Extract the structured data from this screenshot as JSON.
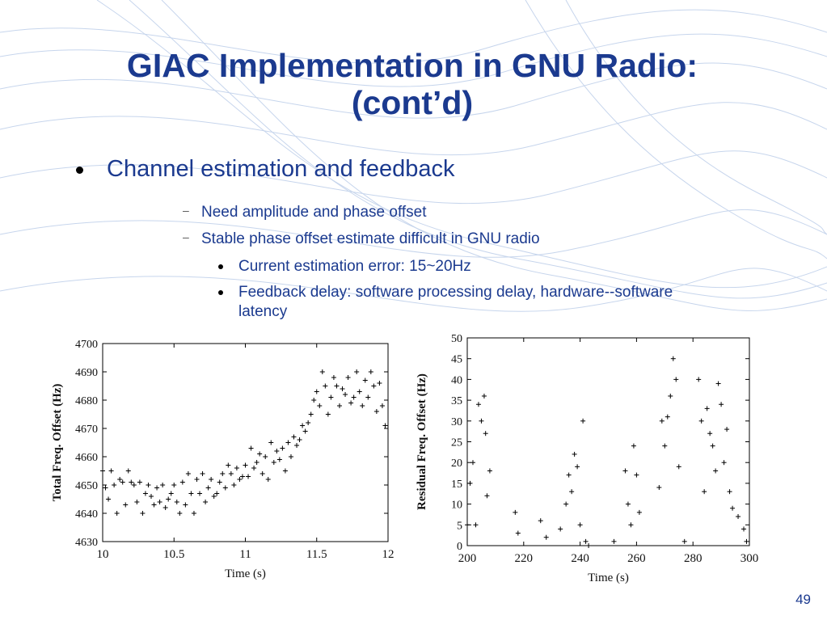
{
  "slide": {
    "title_line1": "GIAC Implementation in GNU Radio:",
    "title_line2": "(cont’d)",
    "bullet": "Channel estimation and feedback",
    "sub_bullets": [
      "Need amplitude and phase offset",
      "Stable phase offset estimate difficult in GNU radio"
    ],
    "sub_sub_bullets": [
      "Current estimation error: 15~20Hz",
      "Feedback delay: software processing delay, hardware--software latency"
    ],
    "page_number": "49",
    "colors": {
      "title": "#1b3a8f",
      "background_waves": "#a8bde0"
    }
  },
  "chart_data": [
    {
      "type": "scatter",
      "marker": "plus",
      "title": "",
      "xlabel": "Time (s)",
      "ylabel": "Total Freq. Offset (Hz)",
      "xlim": [
        10,
        12
      ],
      "ylim": [
        4630,
        4700
      ],
      "xticks": [
        "10",
        "10.5",
        "11",
        "11.5",
        "12"
      ],
      "yticks": [
        "4630",
        "4640",
        "4650",
        "4660",
        "4670",
        "4680",
        "4690",
        "4700"
      ],
      "grid": false,
      "points": [
        [
          10.0,
          4655
        ],
        [
          10.02,
          4649
        ],
        [
          10.04,
          4645
        ],
        [
          10.06,
          4655
        ],
        [
          10.08,
          4650
        ],
        [
          10.1,
          4640
        ],
        [
          10.12,
          4652
        ],
        [
          10.14,
          4651
        ],
        [
          10.16,
          4643
        ],
        [
          10.18,
          4655
        ],
        [
          10.2,
          4651
        ],
        [
          10.22,
          4650
        ],
        [
          10.24,
          4644
        ],
        [
          10.26,
          4651
        ],
        [
          10.28,
          4640
        ],
        [
          10.3,
          4647
        ],
        [
          10.32,
          4650
        ],
        [
          10.34,
          4646
        ],
        [
          10.36,
          4643
        ],
        [
          10.38,
          4649
        ],
        [
          10.4,
          4644
        ],
        [
          10.42,
          4650
        ],
        [
          10.44,
          4642
        ],
        [
          10.46,
          4645
        ],
        [
          10.48,
          4647
        ],
        [
          10.5,
          4650
        ],
        [
          10.52,
          4644
        ],
        [
          10.54,
          4640
        ],
        [
          10.56,
          4651
        ],
        [
          10.58,
          4643
        ],
        [
          10.6,
          4654
        ],
        [
          10.62,
          4647
        ],
        [
          10.64,
          4640
        ],
        [
          10.66,
          4652
        ],
        [
          10.68,
          4647
        ],
        [
          10.7,
          4654
        ],
        [
          10.72,
          4644
        ],
        [
          10.74,
          4649
        ],
        [
          10.76,
          4652
        ],
        [
          10.78,
          4646
        ],
        [
          10.8,
          4647
        ],
        [
          10.82,
          4651
        ],
        [
          10.84,
          4654
        ],
        [
          10.86,
          4649
        ],
        [
          10.88,
          4657
        ],
        [
          10.9,
          4654
        ],
        [
          10.92,
          4650
        ],
        [
          10.94,
          4656
        ],
        [
          10.96,
          4652
        ],
        [
          10.98,
          4653
        ],
        [
          11.0,
          4657
        ],
        [
          11.02,
          4653
        ],
        [
          11.04,
          4663
        ],
        [
          11.06,
          4656
        ],
        [
          11.08,
          4658
        ],
        [
          11.1,
          4661
        ],
        [
          11.12,
          4654
        ],
        [
          11.14,
          4660
        ],
        [
          11.16,
          4652
        ],
        [
          11.18,
          4665
        ],
        [
          11.2,
          4658
        ],
        [
          11.22,
          4662
        ],
        [
          11.24,
          4659
        ],
        [
          11.26,
          4663
        ],
        [
          11.28,
          4655
        ],
        [
          11.3,
          4665
        ],
        [
          11.32,
          4660
        ],
        [
          11.34,
          4667
        ],
        [
          11.36,
          4664
        ],
        [
          11.38,
          4666
        ],
        [
          11.4,
          4671
        ],
        [
          11.42,
          4669
        ],
        [
          11.44,
          4672
        ],
        [
          11.46,
          4675
        ],
        [
          11.48,
          4680
        ],
        [
          11.5,
          4683
        ],
        [
          11.52,
          4678
        ],
        [
          11.54,
          4690
        ],
        [
          11.56,
          4685
        ],
        [
          11.58,
          4675
        ],
        [
          11.6,
          4681
        ],
        [
          11.62,
          4688
        ],
        [
          11.64,
          4685
        ],
        [
          11.66,
          4678
        ],
        [
          11.68,
          4684
        ],
        [
          11.7,
          4682
        ],
        [
          11.72,
          4688
        ],
        [
          11.74,
          4679
        ],
        [
          11.76,
          4681
        ],
        [
          11.78,
          4690
        ],
        [
          11.8,
          4683
        ],
        [
          11.82,
          4678
        ],
        [
          11.84,
          4687
        ],
        [
          11.86,
          4681
        ],
        [
          11.88,
          4690
        ],
        [
          11.9,
          4685
        ],
        [
          11.92,
          4676
        ],
        [
          11.94,
          4686
        ],
        [
          11.96,
          4678
        ],
        [
          11.98,
          4671
        ]
      ]
    },
    {
      "type": "scatter",
      "marker": "plus",
      "title": "",
      "xlabel": "Time (s)",
      "ylabel": "Residual Freq. Offset (Hz)",
      "xlim": [
        200,
        300
      ],
      "ylim": [
        0,
        50
      ],
      "xticks": [
        "200",
        "220",
        "240",
        "260",
        "280",
        "300"
      ],
      "yticks": [
        "0",
        "5",
        "10",
        "15",
        "20",
        "25",
        "30",
        "35",
        "40",
        "45",
        "50"
      ],
      "grid": false,
      "points": [
        [
          200,
          5
        ],
        [
          201,
          15
        ],
        [
          202,
          20
        ],
        [
          203,
          5
        ],
        [
          204,
          34
        ],
        [
          205,
          30
        ],
        [
          206,
          36
        ],
        [
          206.5,
          27
        ],
        [
          207,
          12
        ],
        [
          208,
          18
        ],
        [
          217,
          8
        ],
        [
          218,
          3
        ],
        [
          226,
          6
        ],
        [
          228,
          2
        ],
        [
          233,
          4
        ],
        [
          235,
          10
        ],
        [
          236,
          17
        ],
        [
          237,
          13
        ],
        [
          238,
          22
        ],
        [
          239,
          19
        ],
        [
          240,
          5
        ],
        [
          241,
          30
        ],
        [
          242,
          1
        ],
        [
          243,
          0
        ],
        [
          252,
          1
        ],
        [
          256,
          18
        ],
        [
          257,
          10
        ],
        [
          258,
          5
        ],
        [
          259,
          24
        ],
        [
          260,
          17
        ],
        [
          261,
          8
        ],
        [
          268,
          14
        ],
        [
          269,
          30
        ],
        [
          270,
          24
        ],
        [
          271,
          31
        ],
        [
          272,
          36
        ],
        [
          273,
          45
        ],
        [
          274,
          40
        ],
        [
          275,
          19
        ],
        [
          277,
          1
        ],
        [
          282,
          40
        ],
        [
          283,
          30
        ],
        [
          284,
          13
        ],
        [
          285,
          33
        ],
        [
          286,
          27
        ],
        [
          287,
          24
        ],
        [
          288,
          18
        ],
        [
          289,
          39
        ],
        [
          290,
          34
        ],
        [
          291,
          20
        ],
        [
          292,
          28
        ],
        [
          293,
          13
        ],
        [
          294,
          9
        ],
        [
          296,
          7
        ],
        [
          298,
          4
        ],
        [
          299,
          1
        ]
      ]
    }
  ]
}
